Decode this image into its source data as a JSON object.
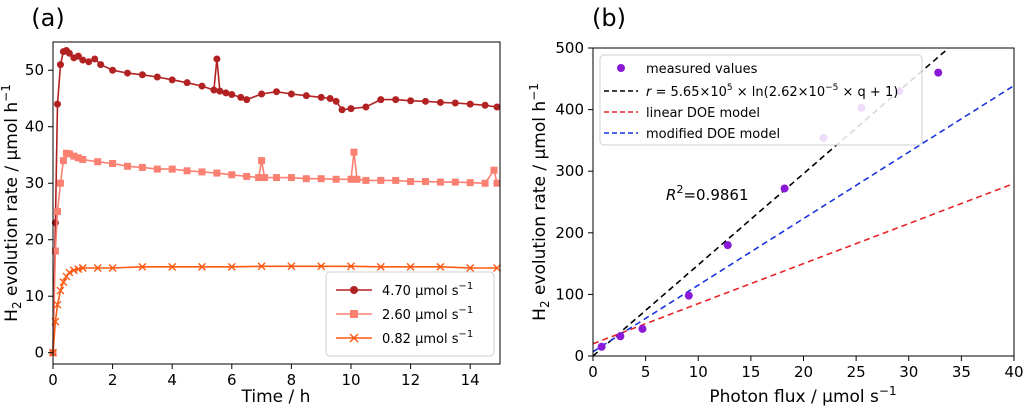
{
  "chart_data": [
    {
      "panel": "(a)",
      "type": "line",
      "xlabel": "Time / h",
      "ylabel_main": "H",
      "ylabel_sub": "2",
      "ylabel_rest": " evolution rate / μmol h",
      "ylabel_sup": "−1",
      "xlim": [
        0,
        15
      ],
      "ylim": [
        -2,
        55
      ],
      "xticks": [
        "0",
        "2",
        "4",
        "6",
        "8",
        "10",
        "12",
        "14"
      ],
      "yticks": [
        "0",
        "10",
        "20",
        "30",
        "40",
        "50"
      ],
      "legend_position": "bottom-right",
      "series": [
        {
          "name": "4.70 μmol s",
          "name_sup": "−1",
          "color": "#b22222",
          "marker": "circle",
          "x": [
            0.0,
            0.08,
            0.15,
            0.25,
            0.35,
            0.45,
            0.55,
            0.7,
            0.85,
            1.0,
            1.2,
            1.4,
            1.6,
            2.0,
            2.5,
            3.0,
            3.5,
            4.0,
            4.5,
            5.0,
            5.4,
            5.5,
            5.6,
            5.8,
            6.0,
            6.3,
            6.5,
            7.0,
            7.5,
            8.0,
            8.5,
            9.0,
            9.3,
            9.5,
            9.7,
            10.0,
            10.5,
            11.0,
            11.5,
            12.0,
            12.5,
            13.0,
            13.5,
            14.0,
            14.5,
            14.9
          ],
          "y": [
            0,
            23,
            44,
            51,
            53.3,
            53.5,
            53,
            52.2,
            52.5,
            51.8,
            51.5,
            52,
            51,
            50,
            49.5,
            49.2,
            48.8,
            48.3,
            47.8,
            47.2,
            46.5,
            52,
            46.3,
            46,
            45.7,
            45.2,
            44.8,
            45.8,
            46.2,
            45.8,
            45.5,
            45.2,
            45,
            44.5,
            43,
            43.2,
            43.5,
            44.8,
            44.8,
            44.6,
            44.5,
            44.3,
            44.2,
            44,
            43.8,
            43.5
          ]
        },
        {
          "name": "2.60 μmol s",
          "name_sup": "−1",
          "color": "#fa8072",
          "marker": "square",
          "x": [
            0.0,
            0.08,
            0.15,
            0.25,
            0.35,
            0.45,
            0.55,
            0.7,
            0.85,
            1.0,
            1.5,
            2.0,
            2.5,
            3.0,
            3.5,
            4.0,
            4.5,
            5.0,
            5.5,
            6.0,
            6.5,
            6.9,
            7.0,
            7.1,
            7.5,
            8.0,
            8.5,
            9.0,
            9.5,
            10.0,
            10.1,
            10.2,
            10.5,
            11.0,
            11.5,
            12.0,
            12.5,
            13.0,
            13.5,
            14.0,
            14.5,
            14.8,
            14.9
          ],
          "y": [
            0,
            18,
            25,
            30,
            34,
            35.3,
            35.2,
            34.8,
            34.5,
            34.2,
            33.8,
            33.5,
            33.0,
            32.8,
            32.5,
            32.5,
            32.2,
            32.0,
            31.8,
            31.5,
            31.2,
            31,
            34,
            31,
            31,
            31,
            30.8,
            30.8,
            30.7,
            30.7,
            35.5,
            30.7,
            30.5,
            30.5,
            30.5,
            30.3,
            30.3,
            30.2,
            30.2,
            30.1,
            30.0,
            32.3,
            30.0
          ]
        },
        {
          "name": "0.82 μmol s",
          "name_sup": "−1",
          "color": "#ff5a14",
          "marker": "x",
          "x": [
            0.0,
            0.08,
            0.15,
            0.25,
            0.35,
            0.45,
            0.55,
            0.7,
            0.85,
            1.0,
            1.5,
            2.0,
            3.0,
            4.0,
            5.0,
            6.0,
            7.0,
            8.0,
            9.0,
            10.0,
            11.0,
            12.0,
            13.0,
            14.0,
            14.9
          ],
          "y": [
            0,
            5.5,
            8.5,
            11,
            12.5,
            13.5,
            14.2,
            14.6,
            14.8,
            15,
            15,
            15,
            15.2,
            15.2,
            15.2,
            15.2,
            15.3,
            15.3,
            15.3,
            15.3,
            15.2,
            15.2,
            15.2,
            15.0,
            15.0
          ]
        }
      ]
    },
    {
      "panel": "(b)",
      "type": "scatter",
      "xlabel": "Photon flux / μmol s",
      "xlabel_sup": "−1",
      "ylabel_main": "H",
      "ylabel_sub": "2",
      "ylabel_rest": " evolution rate / μmol h",
      "ylabel_sup": "−1",
      "xlim": [
        0,
        40
      ],
      "ylim": [
        0,
        500
      ],
      "xticks": [
        "0",
        "5",
        "10",
        "15",
        "20",
        "25",
        "30",
        "35",
        "40"
      ],
      "yticks": [
        "0",
        "100",
        "200",
        "300",
        "400",
        "500"
      ],
      "legend_position": "top-left",
      "annotation": {
        "prefix": "R",
        "sup": "2",
        "suffix": "=0.9861"
      },
      "points": {
        "name": "measured values",
        "color": "#8b19d8",
        "x": [
          0.82,
          2.6,
          4.7,
          9.1,
          12.8,
          18.2,
          21.9,
          25.5,
          29.1,
          32.8
        ],
        "y": [
          15,
          32,
          44,
          98,
          180,
          272,
          354,
          403,
          430,
          460
        ]
      },
      "fits": [
        {
          "name_parts": [
            "r",
            " = 5.65×10",
            "5",
            " × ln(2.62×10",
            "−5",
            " × q + 1)"
          ],
          "color": "#000000",
          "model": "log",
          "A": 565000,
          "B": 2.62e-05,
          "domain": [
            0,
            40
          ]
        },
        {
          "name": "linear DOE model",
          "color": "#e8262a",
          "model": "linear",
          "slope": 6.5,
          "intercept": 20,
          "domain": [
            0,
            40
          ]
        },
        {
          "name": "modified DOE model",
          "color": "#1a35e0",
          "model": "linear",
          "slope": 10.8,
          "intercept": 7,
          "domain": [
            0,
            40
          ]
        }
      ]
    }
  ]
}
